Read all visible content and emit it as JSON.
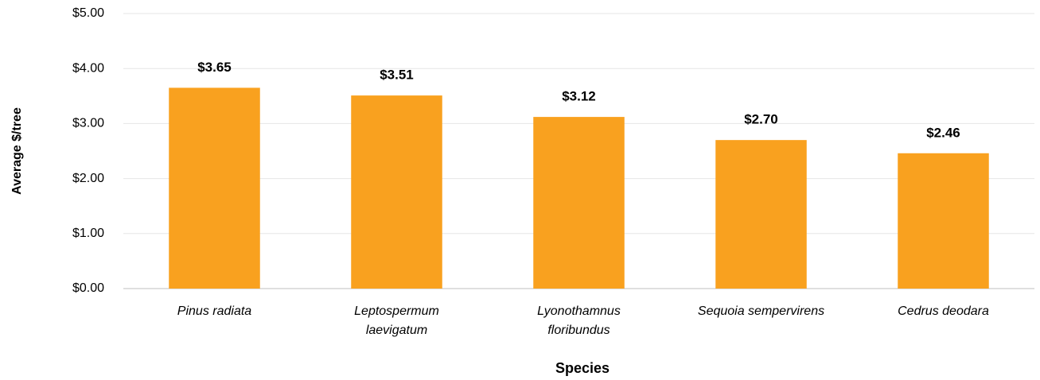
{
  "chart_data": {
    "type": "bar",
    "x_label": "Species",
    "y_label": "Average $/tree",
    "categories": [
      "Pinus radiata",
      "Leptospermum\nlaevigatum",
      "Lyonothamnus\nfloribundus",
      "Sequoia sempervirens",
      "Cedrus deodara"
    ],
    "values": [
      3.65,
      3.51,
      3.12,
      2.7,
      2.46
    ],
    "value_labels": [
      "$3.65",
      "$3.51",
      "$3.12",
      "$2.70",
      "$2.46"
    ],
    "color": "#f9a11f",
    "ylim": [
      0,
      5
    ],
    "yticks": [
      {
        "value": 0,
        "label": "$0.00"
      },
      {
        "value": 1,
        "label": "$1.00"
      },
      {
        "value": 2,
        "label": "$2.00"
      },
      {
        "value": 3,
        "label": "$3.00"
      },
      {
        "value": 4,
        "label": "$4.00"
      },
      {
        "value": 5,
        "label": "$5.00"
      }
    ],
    "grid": true
  }
}
